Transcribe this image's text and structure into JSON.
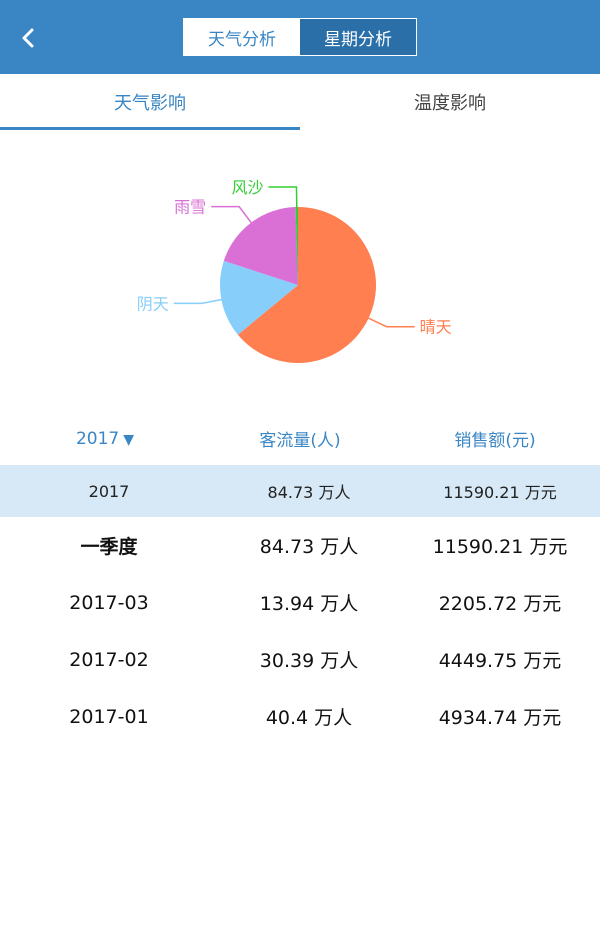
{
  "header": {
    "tabs": [
      {
        "label": "天气分析",
        "active": true
      },
      {
        "label": "星期分析",
        "active": false
      }
    ]
  },
  "subtabs": [
    {
      "label": "天气影响",
      "active": true
    },
    {
      "label": "温度影响",
      "active": false
    }
  ],
  "chart_data": {
    "type": "pie",
    "slices": [
      {
        "label": "晴天",
        "value": 64,
        "color": "#ff7f50"
      },
      {
        "label": "阴天",
        "value": 16,
        "color": "#87cefa"
      },
      {
        "label": "雨雪",
        "value": 19.5,
        "color": "#da70d6"
      },
      {
        "label": "风沙",
        "value": 0.5,
        "color": "#32cd32"
      }
    ]
  },
  "table": {
    "year_selector": "2017",
    "headers": {
      "traffic": "客流量(人)",
      "sales": "销售额(元)"
    },
    "year_row": {
      "period": "2017",
      "traffic": "84.73 万人",
      "sales": "11590.21 万元"
    },
    "rows": [
      {
        "period": "一季度",
        "traffic": "84.73 万人",
        "sales": "11590.21 万元"
      },
      {
        "period": "2017-03",
        "traffic": "13.94 万人",
        "sales": "2205.72 万元"
      },
      {
        "period": "2017-02",
        "traffic": "30.39 万人",
        "sales": "4449.75 万元"
      },
      {
        "period": "2017-01",
        "traffic": "40.4 万人",
        "sales": "4934.74 万元"
      }
    ]
  }
}
